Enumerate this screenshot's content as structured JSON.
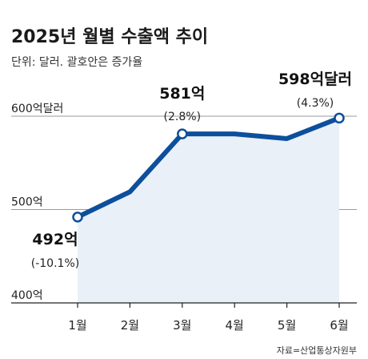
{
  "chart_data": {
    "type": "area",
    "title": "2025년 월별 수출액 추이",
    "subtitle": "단위: 달러. 괄호안은 증가율",
    "categories": [
      "1월",
      "2월",
      "3월",
      "4월",
      "5월",
      "6월"
    ],
    "values": [
      492,
      519,
      581,
      581,
      576,
      598
    ],
    "yticks": [
      {
        "value": 600,
        "label": "600억달러"
      },
      {
        "value": 500,
        "label": "500억"
      },
      {
        "value": 400,
        "label": "400억"
      }
    ],
    "ylim": [
      400,
      600
    ],
    "grid": true,
    "annotations": [
      {
        "index": 0,
        "value_label": "492억",
        "rate_label": "(-10.1%)"
      },
      {
        "index": 2,
        "value_label": "581억",
        "rate_label": "(2.8%)"
      },
      {
        "index": 5,
        "value_label": "598억달러",
        "rate_label": "(4.3%)"
      }
    ],
    "source": "자료=산업통상자원부",
    "colors": {
      "line": "#0d4f9c",
      "fill": "#e9f0f8",
      "marker_fill": "#ffffff",
      "grid": "#9a9a9a"
    }
  }
}
